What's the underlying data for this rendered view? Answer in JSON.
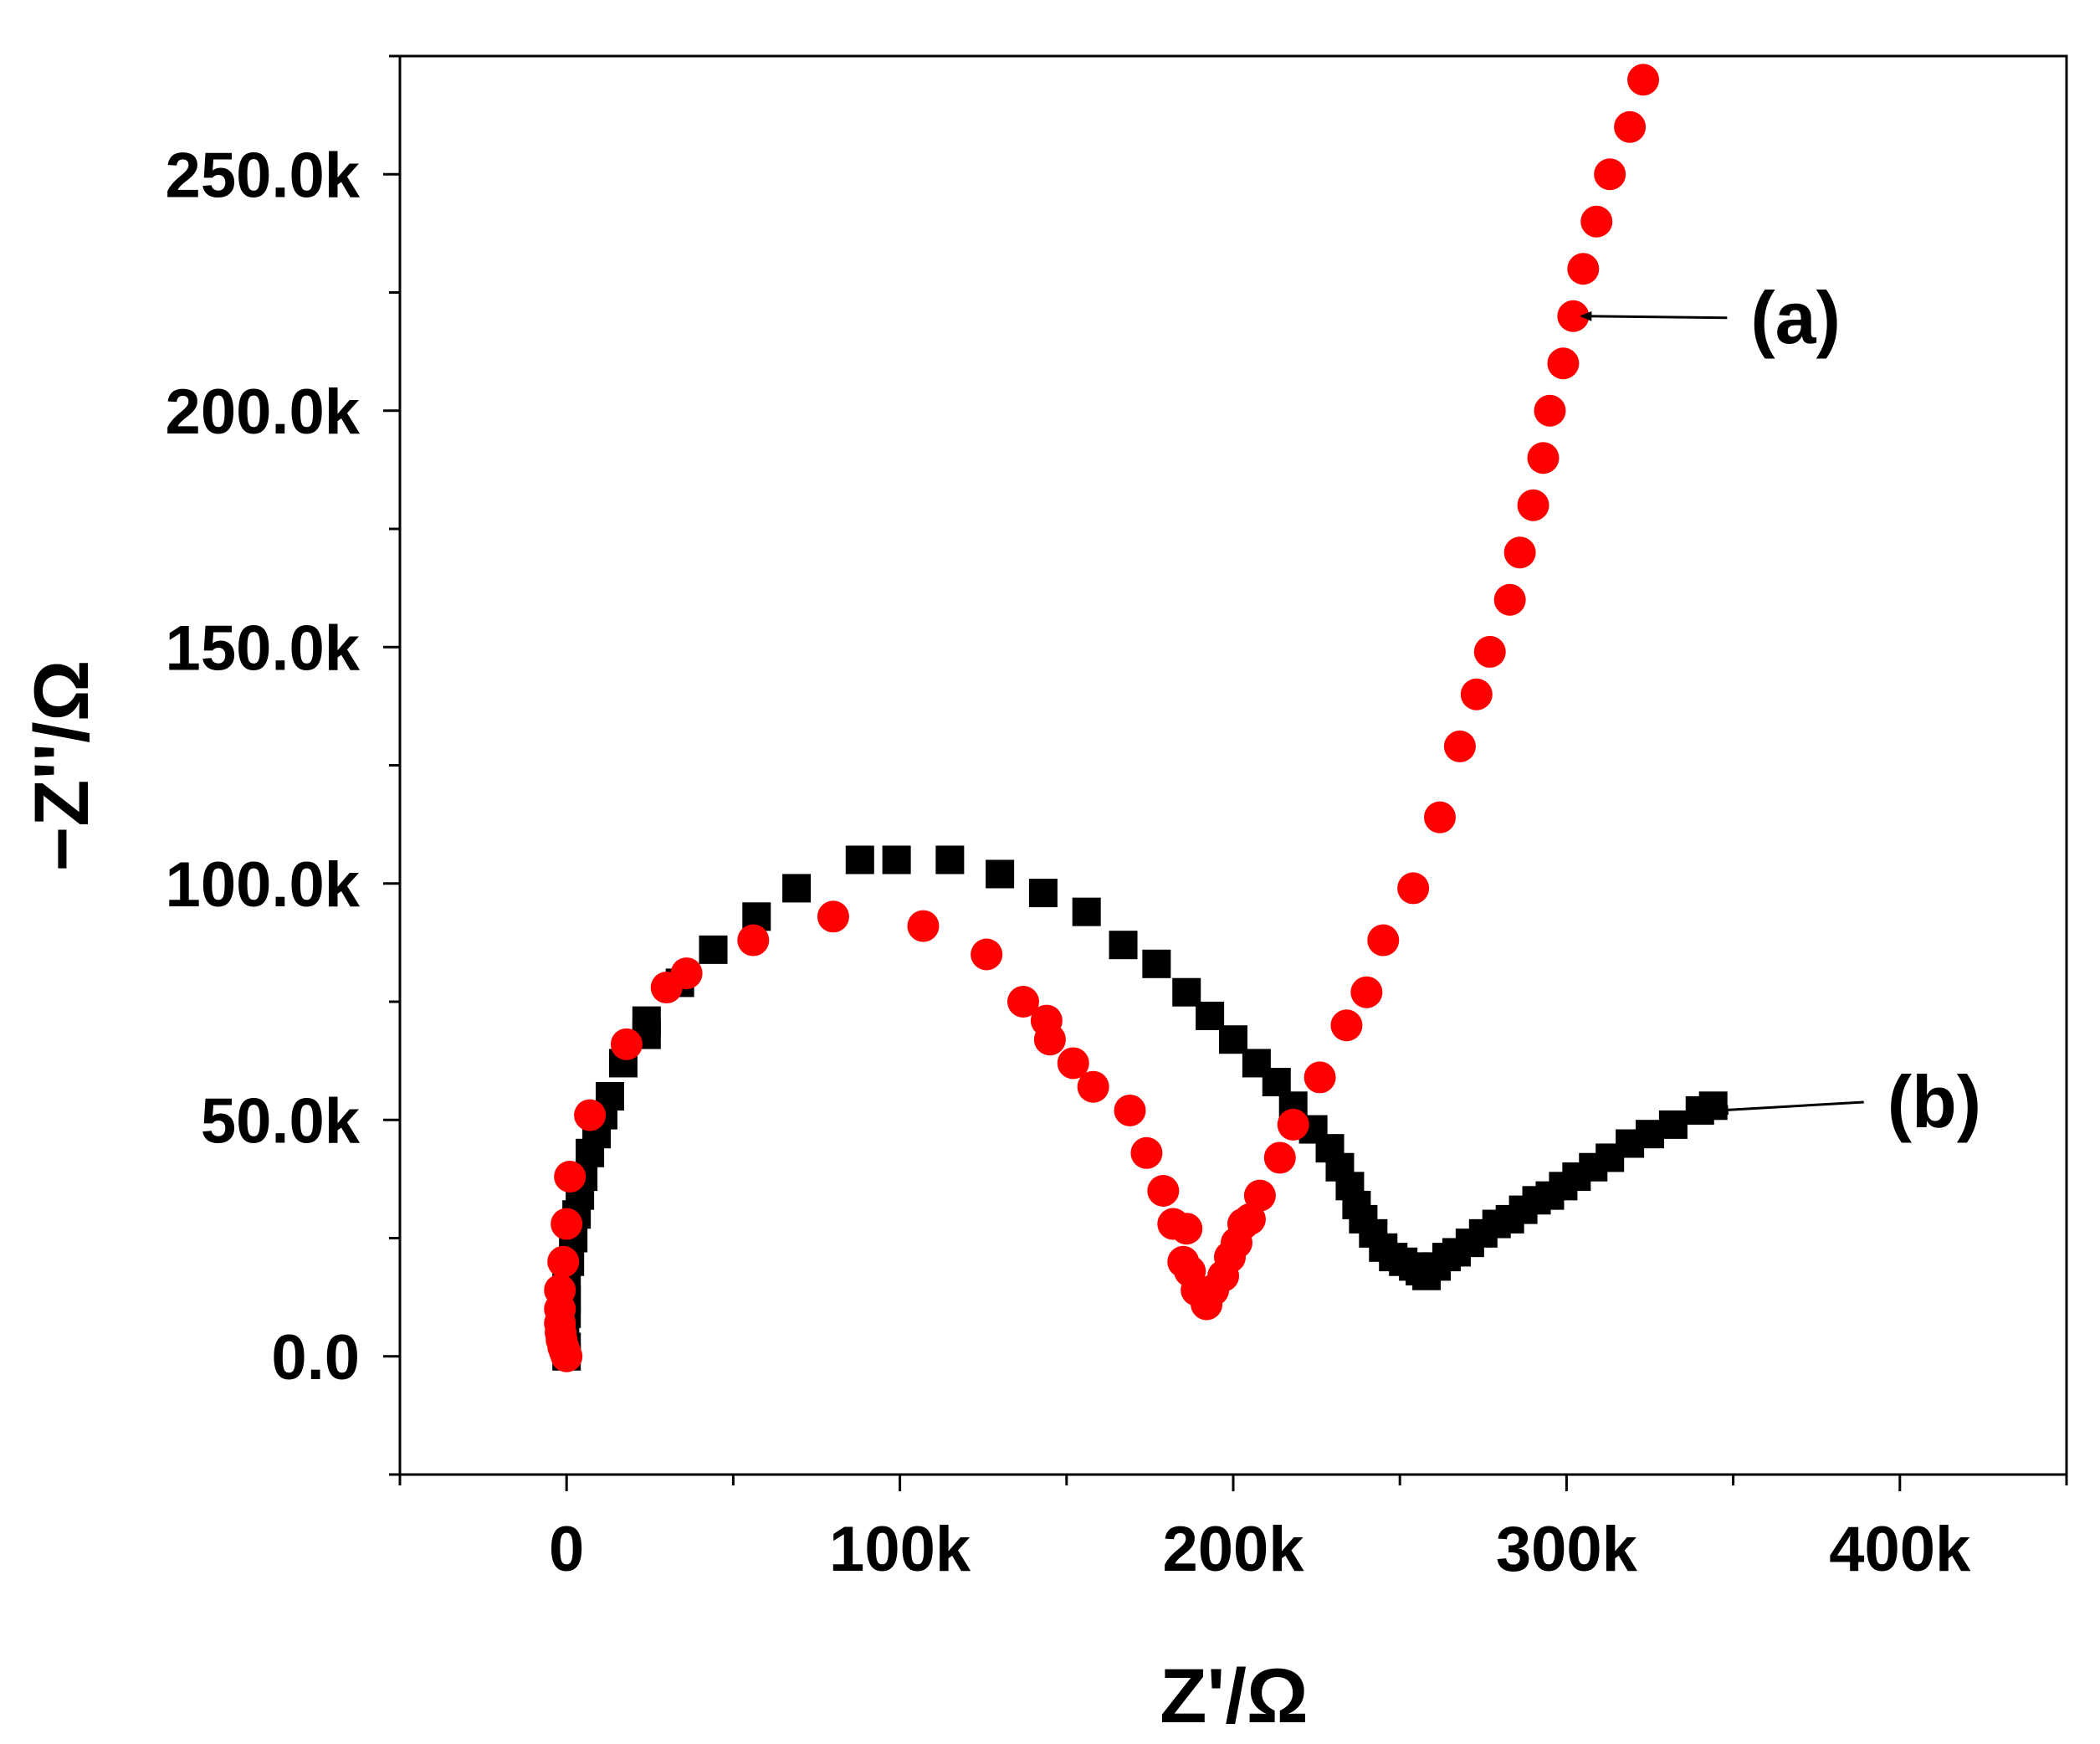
{
  "chart_data": {
    "type": "scatter",
    "title": "",
    "xlabel": "Z'/Ω",
    "ylabel": "−Z''/Ω",
    "xlim": [
      -50000,
      450000
    ],
    "ylim": [
      -25000,
      275000
    ],
    "xticks": [
      0,
      100000,
      200000,
      300000,
      400000
    ],
    "xtick_labels": [
      "0",
      "100k",
      "200k",
      "300k",
      "400k"
    ],
    "yticks": [
      0,
      50000,
      100000,
      150000,
      200000,
      250000
    ],
    "ytick_labels": [
      "0.0",
      "50.0k",
      "100.0k",
      "150.0k",
      "200.0k",
      "250.0k"
    ],
    "grid": false,
    "legend": "none",
    "annotations": [
      {
        "label": "(a)",
        "series": "a",
        "arrow_to": [
          303000,
          220000
        ]
      },
      {
        "label": "(b)",
        "series": "b",
        "arrow_to": [
          344000,
          52000
        ]
      }
    ],
    "series": [
      {
        "name": "a",
        "label": "(a)",
        "marker": "circle",
        "color": "#ff0000",
        "points": [
          [
            0,
            0
          ],
          [
            -500,
            1000
          ],
          [
            -1000,
            2000
          ],
          [
            -1500,
            3500
          ],
          [
            -1800,
            5000
          ],
          [
            -2000,
            7000
          ],
          [
            -2000,
            10000
          ],
          [
            -2000,
            14000
          ],
          [
            -1000,
            20000
          ],
          [
            0,
            28000
          ],
          [
            1000,
            38000
          ],
          [
            7000,
            51000
          ],
          [
            18000,
            66000
          ],
          [
            30000,
            78000
          ],
          [
            36000,
            81000
          ],
          [
            56000,
            88000
          ],
          [
            80000,
            93000
          ],
          [
            107000,
            91000
          ],
          [
            126000,
            85000
          ],
          [
            137000,
            75000
          ],
          [
            144000,
            71000
          ],
          [
            145000,
            67000
          ],
          [
            152000,
            62000
          ],
          [
            158000,
            57000
          ],
          [
            169000,
            52000
          ],
          [
            174000,
            43000
          ],
          [
            179000,
            35000
          ],
          [
            182000,
            28000
          ],
          [
            186000,
            27000
          ],
          [
            185000,
            20000
          ],
          [
            187000,
            18000
          ],
          [
            189000,
            14000
          ],
          [
            192000,
            11000
          ],
          [
            194000,
            14000
          ],
          [
            197000,
            17000
          ],
          [
            199000,
            21000
          ],
          [
            201000,
            24000
          ],
          [
            203000,
            28000
          ],
          [
            205000,
            29000
          ],
          [
            208000,
            34000
          ],
          [
            214000,
            42000
          ],
          [
            218000,
            49000
          ],
          [
            226000,
            59000
          ],
          [
            234000,
            70000
          ],
          [
            240000,
            77000
          ],
          [
            245000,
            88000
          ],
          [
            254000,
            99000
          ],
          [
            262000,
            114000
          ],
          [
            268000,
            129000
          ],
          [
            273000,
            140000
          ],
          [
            277000,
            149000
          ],
          [
            283000,
            160000
          ],
          [
            286000,
            170000
          ],
          [
            290000,
            180000
          ],
          [
            293000,
            190000
          ],
          [
            295000,
            200000
          ],
          [
            299000,
            210000
          ],
          [
            302000,
            220000
          ],
          [
            305000,
            230000
          ],
          [
            309000,
            240000
          ],
          [
            313000,
            250000
          ],
          [
            319000,
            260000
          ],
          [
            323000,
            270000
          ]
        ]
      },
      {
        "name": "b",
        "label": "(b)",
        "marker": "square",
        "color": "#000000",
        "points": [
          [
            0,
            0
          ],
          [
            0,
            2000
          ],
          [
            -500,
            4000
          ],
          [
            -500,
            6000
          ],
          [
            0,
            9000
          ],
          [
            0,
            12000
          ],
          [
            0,
            15000
          ],
          [
            1000,
            20000
          ],
          [
            2000,
            25000
          ],
          [
            3000,
            30000
          ],
          [
            4000,
            34000
          ],
          [
            5000,
            38000
          ],
          [
            7000,
            43000
          ],
          [
            9000,
            47000
          ],
          [
            11000,
            51000
          ],
          [
            13000,
            55000
          ],
          [
            17000,
            62000
          ],
          [
            24000,
            68000
          ],
          [
            24000,
            71000
          ],
          [
            34000,
            79000
          ],
          [
            44000,
            86000
          ],
          [
            57000,
            93000
          ],
          [
            69000,
            99000
          ],
          [
            88000,
            105000
          ],
          [
            99000,
            105000
          ],
          [
            115000,
            105000
          ],
          [
            130000,
            102000
          ],
          [
            143000,
            98000
          ],
          [
            156000,
            94000
          ],
          [
            167000,
            87000
          ],
          [
            177000,
            83000
          ],
          [
            186000,
            77000
          ],
          [
            193000,
            72000
          ],
          [
            200000,
            67000
          ],
          [
            207000,
            62000
          ],
          [
            213000,
            58000
          ],
          [
            218000,
            53000
          ],
          [
            224000,
            48000
          ],
          [
            229000,
            44000
          ],
          [
            232000,
            40000
          ],
          [
            235000,
            36000
          ],
          [
            237000,
            32000
          ],
          [
            239000,
            29000
          ],
          [
            242000,
            26000
          ],
          [
            245000,
            23000
          ],
          [
            248000,
            21000
          ],
          [
            251000,
            20000
          ],
          [
            254000,
            19000
          ],
          [
            256000,
            18000
          ],
          [
            258000,
            17000
          ],
          [
            261000,
            19000
          ],
          [
            264000,
            21000
          ],
          [
            267000,
            22000
          ],
          [
            271000,
            24000
          ],
          [
            275000,
            26000
          ],
          [
            279000,
            28000
          ],
          [
            283000,
            29000
          ],
          [
            287000,
            31000
          ],
          [
            291000,
            33000
          ],
          [
            295000,
            34000
          ],
          [
            299000,
            36000
          ],
          [
            303000,
            38000
          ],
          [
            308000,
            40000
          ],
          [
            313000,
            42000
          ],
          [
            319000,
            45000
          ],
          [
            325000,
            47000
          ],
          [
            332000,
            49000
          ],
          [
            340000,
            52000
          ],
          [
            344000,
            53000
          ]
        ]
      }
    ]
  }
}
